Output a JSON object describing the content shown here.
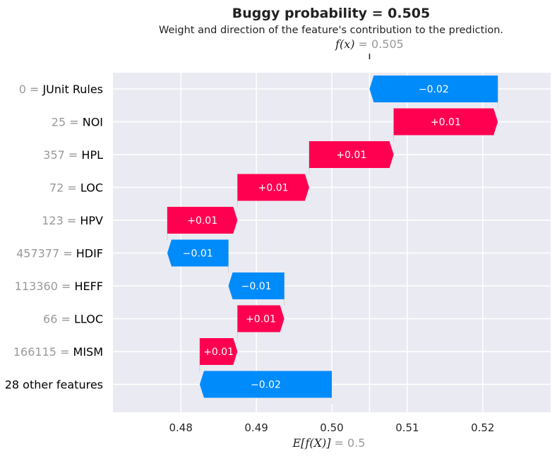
{
  "title": "Buggy probability = 0.505",
  "subtitle": "Weight and direction of the feature's contribution to the prediction.",
  "colors": {
    "positive": "#ff0051",
    "negative": "#008bfb",
    "plot_bg": "#eaeaf2",
    "grid": "#ffffff"
  },
  "chart_data": {
    "type": "bar",
    "xlim": [
      0.471,
      0.529
    ],
    "xticks": [
      0.48,
      0.49,
      0.5,
      0.51,
      0.52
    ],
    "xtick_labels": [
      "0.48",
      "0.49",
      "0.50",
      "0.51",
      "0.52"
    ],
    "fx": {
      "symbol": "f(x)",
      "label": "= 0.505",
      "value": 0.505
    },
    "expected": {
      "symbol": "E[f(X)]",
      "label": "= 0.5",
      "value": 0.5
    },
    "features": [
      {
        "value": "0",
        "name": "JUnit Rules",
        "start": 0.522,
        "end": 0.505,
        "contribution": -0.017,
        "label": "−0.02"
      },
      {
        "value": "25",
        "name": "NOI",
        "start": 0.5082,
        "end": 0.522,
        "contribution": 0.0138,
        "label": "+0.01"
      },
      {
        "value": "357",
        "name": "HPL",
        "start": 0.497,
        "end": 0.5082,
        "contribution": 0.0112,
        "label": "+0.01"
      },
      {
        "value": "72",
        "name": "LOC",
        "start": 0.4875,
        "end": 0.497,
        "contribution": 0.0095,
        "label": "+0.01"
      },
      {
        "value": "123",
        "name": "HPV",
        "start": 0.4782,
        "end": 0.4875,
        "contribution": 0.0093,
        "label": "+0.01"
      },
      {
        "value": "457377",
        "name": "HDIF",
        "start": 0.4863,
        "end": 0.4782,
        "contribution": -0.0081,
        "label": "−0.01"
      },
      {
        "value": "113360",
        "name": "HEFF",
        "start": 0.4937,
        "end": 0.4863,
        "contribution": -0.0074,
        "label": "−0.01"
      },
      {
        "value": "66",
        "name": "LLOC",
        "start": 0.4875,
        "end": 0.4937,
        "contribution": 0.0062,
        "label": "+0.01"
      },
      {
        "value": "166115",
        "name": "MISM",
        "start": 0.4825,
        "end": 0.4875,
        "contribution": 0.005,
        "label": "+0.01"
      },
      {
        "value": "",
        "name": "28 other features",
        "start": 0.5,
        "end": 0.4825,
        "contribution": -0.0175,
        "label": "−0.02"
      }
    ]
  }
}
